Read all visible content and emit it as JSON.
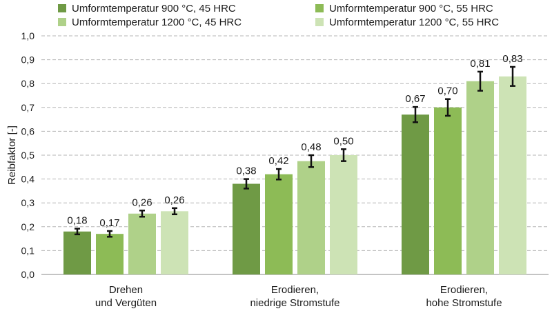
{
  "chart_data": {
    "type": "bar",
    "ylabel": "Reibfaktor [-]",
    "ylim": [
      0,
      1.0
    ],
    "ytick_step": 0.1,
    "grid": true,
    "legend_position": "top",
    "categories": [
      [
        "Drehen",
        "und Vergüten"
      ],
      [
        "Erodieren,",
        "niedrige Stromstufe"
      ],
      [
        "Erodieren,",
        "hohe Stromstufe"
      ]
    ],
    "series": [
      {
        "name": "Umformtemperatur 900 °C, 45 HRC",
        "color": "#6f9a45",
        "values": [
          0.18,
          0.38,
          0.67
        ],
        "labels": [
          "0,18",
          "0,38",
          "0,67"
        ],
        "errors": [
          0.012,
          0.02,
          0.032
        ]
      },
      {
        "name": "Umformtemperatur 900 °C, 55 HRC",
        "color": "#8dbb56",
        "values": [
          0.17,
          0.42,
          0.7
        ],
        "labels": [
          "0,17",
          "0,42",
          "0,70"
        ],
        "errors": [
          0.012,
          0.022,
          0.035
        ]
      },
      {
        "name": "Umformtemperatur 1200 °C, 45 HRC",
        "color": "#afd189",
        "values": [
          0.255,
          0.475,
          0.81
        ],
        "labels": [
          "0,26",
          "0,48",
          "0,81"
        ],
        "errors": [
          0.013,
          0.025,
          0.04
        ]
      },
      {
        "name": "Umformtemperatur 1200 °C, 55 HRC",
        "color": "#cde3b5",
        "values": [
          0.265,
          0.5,
          0.83
        ],
        "labels": [
          "0,26",
          "0,50",
          "0,83"
        ],
        "errors": [
          0.013,
          0.025,
          0.04
        ]
      }
    ]
  }
}
